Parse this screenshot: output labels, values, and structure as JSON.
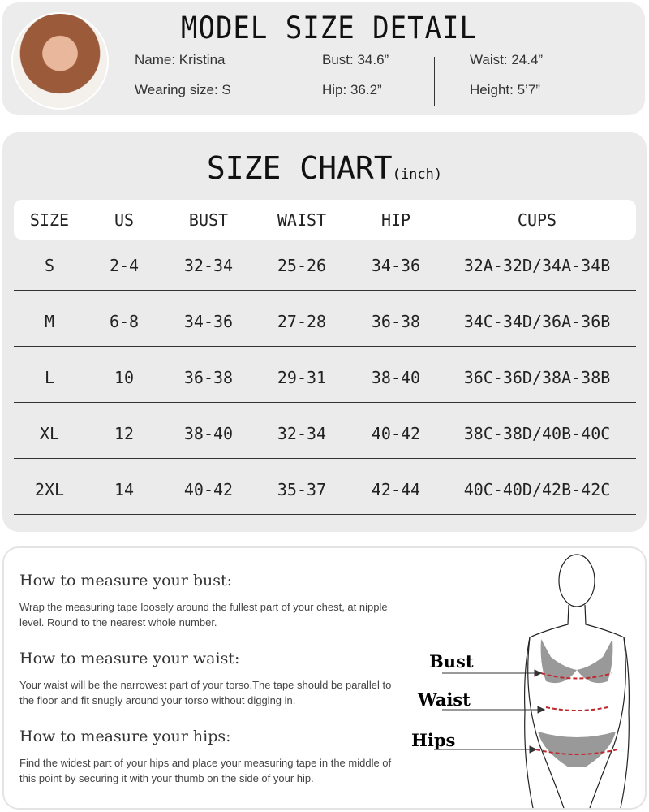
{
  "model": {
    "title": "MODEL SIZE DETAIL",
    "name": "Name: Kristina",
    "wearing": "Wearing size: S",
    "bust": "Bust: 34.6”",
    "hip": "Hip: 36.2”",
    "waist": "Waist: 24.4”",
    "height": "Height: 5’7”"
  },
  "size_chart": {
    "title": "SIZE CHART",
    "unit": "(inch)",
    "headers": [
      "SIZE",
      "US",
      "BUST",
      "WAIST",
      "HIP",
      "CUPS"
    ],
    "rows": [
      [
        "S",
        "2-4",
        "32-34",
        "25-26",
        "34-36",
        "32A-32D/34A-34B"
      ],
      [
        "M",
        "6-8",
        "34-36",
        "27-28",
        "36-38",
        "34C-34D/36A-36B"
      ],
      [
        "L",
        "10",
        "36-38",
        "29-31",
        "38-40",
        "36C-36D/38A-38B"
      ],
      [
        "XL",
        "12",
        "38-40",
        "32-34",
        "40-42",
        "38C-38D/40B-40C"
      ],
      [
        "2XL",
        "14",
        "40-42",
        "35-37",
        "42-44",
        "40C-40D/42B-42C"
      ]
    ]
  },
  "howto": {
    "bust_title": "How to measure your bust:",
    "bust_text": "Wrap the measuring tape loosely around the fullest part of your chest, at nipple level. Round to the nearest whole number.",
    "waist_title": "How to measure your waist:",
    "waist_text": "Your waist will be the narrowest part of your torso.The tape should be parallel to the floor and fit snugly around your torso without digging in.",
    "hips_title": "How to measure your hips:",
    "hips_text": "Find the widest part of your hips and place your measuring tape in the middle of this point by securing it with your thumb on the side of your hip.",
    "labels": {
      "bust": "Bust",
      "waist": "Waist",
      "hips": "Hips"
    }
  },
  "colors": {
    "card": "#ebebeb",
    "tape": "#c0282d",
    "garment": "#999999"
  }
}
